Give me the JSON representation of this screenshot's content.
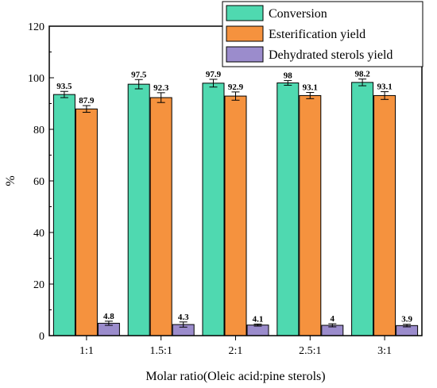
{
  "chart_data": {
    "type": "bar",
    "xlabel": "Molar ratio(Oleic acid:pine sterols)",
    "ylabel": "%",
    "ylim": [
      0,
      120
    ],
    "yticks": [
      0,
      20,
      40,
      60,
      80,
      100,
      120
    ],
    "categories": [
      "1:1",
      "1.5:1",
      "2:1",
      "2.5:1",
      "3:1"
    ],
    "series": [
      {
        "name": "Conversion",
        "color": "#4fd9b0",
        "values": [
          93.5,
          97.5,
          97.9,
          98,
          98.2
        ],
        "errors": [
          1.2,
          1.8,
          1.5,
          0.9,
          1.3
        ],
        "labels": [
          "93.5",
          "97.5",
          "97.9",
          "98",
          "98.2"
        ]
      },
      {
        "name": "Esterification yield",
        "color": "#f5923e",
        "values": [
          87.9,
          92.3,
          92.9,
          93.1,
          93.1
        ],
        "errors": [
          1.3,
          1.9,
          1.6,
          1.2,
          1.5
        ],
        "labels": [
          "87.9",
          "92.3",
          "92.9",
          "93.1",
          "93.1"
        ]
      },
      {
        "name": "Dehydrated sterols yield",
        "color": "#9b8ccc",
        "values": [
          4.8,
          4.3,
          4.1,
          4,
          3.9
        ],
        "errors": [
          0.8,
          1.0,
          0.4,
          0.6,
          0.5
        ],
        "labels": [
          "4.8",
          "4.3",
          "4.1",
          "4",
          "3.9"
        ]
      }
    ],
    "legend_position": "top-right",
    "grid": false
  }
}
